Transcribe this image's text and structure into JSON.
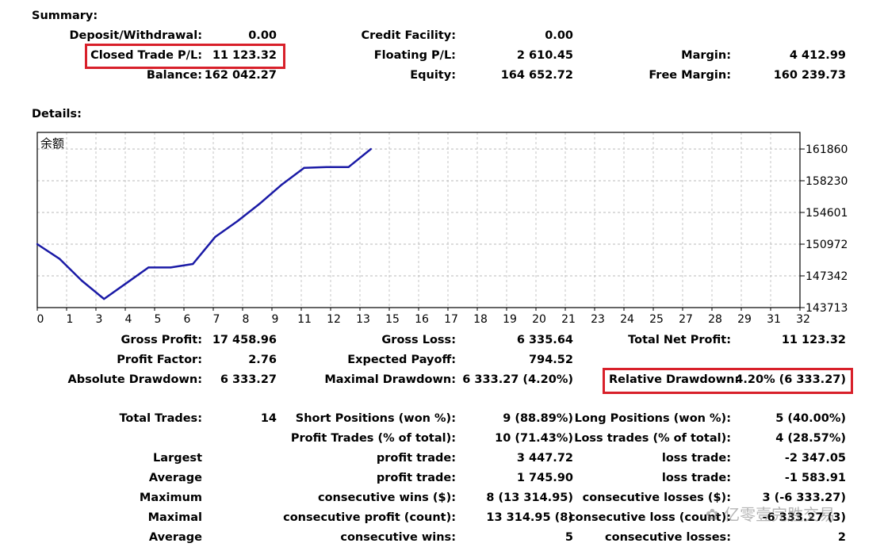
{
  "summary": {
    "title": "Summary:",
    "deposit_label": "Deposit/Withdrawal:",
    "deposit_value": "0.00",
    "credit_label": "Credit Facility:",
    "credit_value": "0.00",
    "closed_pl_label": "Closed Trade P/L:",
    "closed_pl_value": "11 123.32",
    "floating_label": "Floating P/L:",
    "floating_value": "2 610.45",
    "margin_label": "Margin:",
    "margin_value": "4 412.99",
    "balance_label": "Balance:",
    "balance_value": "162 042.27",
    "equity_label": "Equity:",
    "equity_value": "164 652.72",
    "free_margin_label": "Free Margin:",
    "free_margin_value": "160 239.73"
  },
  "details": {
    "title": "Details:"
  },
  "chart_data": {
    "type": "line",
    "title": "余额",
    "line_color": "#1a1aa6",
    "x_ticks": [
      "0",
      "1",
      "3",
      "4",
      "5",
      "6",
      "7",
      "8",
      "9",
      "11",
      "12",
      "13",
      "15",
      "16",
      "17",
      "18",
      "19",
      "20",
      "21",
      "23",
      "24",
      "25",
      "27",
      "28",
      "29",
      "31",
      "32"
    ],
    "y_ticks": [
      "161860",
      "158230",
      "154601",
      "150972",
      "147342",
      "143713"
    ],
    "ylim": [
      143713,
      161860
    ],
    "series": [
      {
        "values": [
          150972,
          149300,
          146800,
          144700,
          146500,
          148300,
          148300,
          148700,
          151800,
          153600,
          155600,
          157800,
          159700,
          159800,
          159800,
          161860
        ]
      }
    ]
  },
  "stats": {
    "gross_profit_label": "Gross Profit:",
    "gross_profit_value": "17 458.96",
    "gross_loss_label": "Gross Loss:",
    "gross_loss_value": "6 335.64",
    "total_net_label": "Total Net Profit:",
    "total_net_value": "11 123.32",
    "profit_factor_label": "Profit Factor:",
    "profit_factor_value": "2.76",
    "expected_payoff_label": "Expected Payoff:",
    "expected_payoff_value": "794.52",
    "abs_dd_label": "Absolute Drawdown:",
    "abs_dd_value": "6 333.27",
    "max_dd_label": "Maximal Drawdown:",
    "max_dd_value": "6 333.27 (4.20%)",
    "rel_dd_label": "Relative Drawdown:",
    "rel_dd_value": "4.20% (6 333.27)",
    "total_trades_label": "Total Trades:",
    "total_trades_value": "14",
    "short_label": "Short Positions (won %):",
    "short_value": "9 (88.89%)",
    "long_label": "Long Positions (won %):",
    "long_value": "5 (40.00%)",
    "profit_trades_label": "Profit Trades (% of total):",
    "profit_trades_value": "10 (71.43%)",
    "loss_trades_label": "Loss trades (% of total):",
    "loss_trades_value": "4 (28.57%)",
    "largest_label": "Largest",
    "largest_profit_label": "profit trade:",
    "largest_profit_value": "3 447.72",
    "largest_loss_label": "loss trade:",
    "largest_loss_value": "-2 347.05",
    "average_label": "Average",
    "average_profit_label": "profit trade:",
    "average_profit_value": "1 745.90",
    "average_loss_label": "loss trade:",
    "average_loss_value": "-1 583.91",
    "maximum_label": "Maximum",
    "max_cons_wins_label": "consecutive wins ($):",
    "max_cons_wins_value": "8 (13 314.95)",
    "max_cons_losses_label": "consecutive losses ($):",
    "max_cons_losses_value": "3 (-6 333.27)",
    "maximal_label": "Maximal",
    "maximal_profit_label": "consecutive profit (count):",
    "maximal_profit_value": "13 314.95 (8)",
    "maximal_loss_label": "consecutive loss (count):",
    "maximal_loss_value": "-6 333.27 (3)",
    "avg2_label": "Average",
    "avg_cons_wins_label": "consecutive wins:",
    "avg_cons_wins_value": "5",
    "avg_cons_losses_label": "consecutive losses:",
    "avg_cons_losses_value": "2"
  },
  "watermark": "亿零壹完胜交易"
}
